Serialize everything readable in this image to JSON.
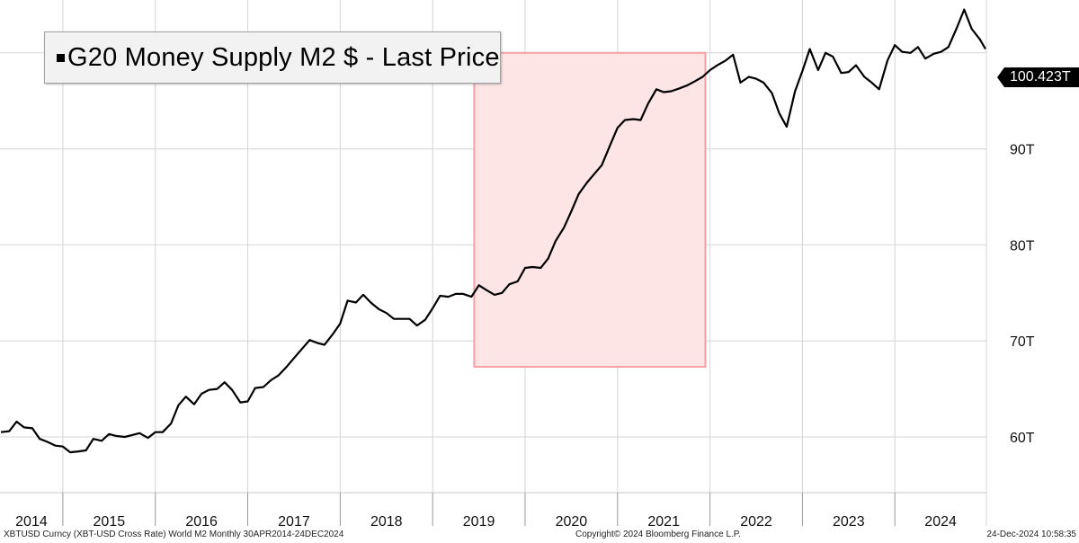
{
  "legend": {
    "label": "G20 Money Supply M2 $ - Last Price"
  },
  "last_value_label": "100.423T",
  "footer": {
    "left": "XBTUSD Curncy (XBT-USD Cross Rate) World M2  Monthly 30APR2014-24DEC2024",
    "center": "Copyright© 2024 Bloomberg Finance L.P.",
    "right": "24-Dec-2024 10:58:35"
  },
  "colors": {
    "line": "#000000",
    "highlight_fill": "#fde4e5",
    "highlight_stroke": "#f5a0a3",
    "grid": "#d4d4d4",
    "label_bg": "#000000"
  },
  "chart_data": {
    "type": "line",
    "title": "",
    "xlabel": "",
    "ylabel": "",
    "ylim": [
      54.2,
      105.5
    ],
    "xlim": [
      2014.32,
      2024.99
    ],
    "y_ticks": [
      60,
      70,
      80,
      90
    ],
    "y_tick_labels": [
      "60T",
      "70T",
      "80T",
      "90T"
    ],
    "x_tick_labels": [
      "2014",
      "2015",
      "2016",
      "2017",
      "2018",
      "2019",
      "2020",
      "2021",
      "2022",
      "2023",
      "2024"
    ],
    "grid": true,
    "legend_position": "top-left",
    "highlight_region": {
      "x": [
        2019.45,
        2021.95
      ],
      "y": [
        67.3,
        100
      ]
    },
    "series": [
      {
        "name": "G20 Money Supply M2 $ - Last Price",
        "x": [
          2014.33,
          2014.42,
          2014.5,
          2014.58,
          2014.67,
          2014.75,
          2014.83,
          2014.92,
          2015.0,
          2015.08,
          2015.17,
          2015.25,
          2015.33,
          2015.42,
          2015.5,
          2015.58,
          2015.67,
          2015.75,
          2015.83,
          2015.92,
          2016.0,
          2016.08,
          2016.17,
          2016.25,
          2016.33,
          2016.42,
          2016.5,
          2016.58,
          2016.67,
          2016.75,
          2016.83,
          2016.92,
          2017.0,
          2017.08,
          2017.17,
          2017.25,
          2017.33,
          2017.42,
          2017.5,
          2017.58,
          2017.67,
          2017.75,
          2017.83,
          2017.92,
          2018.0,
          2018.08,
          2018.17,
          2018.25,
          2018.33,
          2018.42,
          2018.5,
          2018.58,
          2018.67,
          2018.75,
          2018.83,
          2018.92,
          2019.0,
          2019.08,
          2019.17,
          2019.25,
          2019.33,
          2019.42,
          2019.5,
          2019.58,
          2019.67,
          2019.75,
          2019.83,
          2019.92,
          2020.0,
          2020.08,
          2020.17,
          2020.25,
          2020.33,
          2020.42,
          2020.5,
          2020.58,
          2020.67,
          2020.75,
          2020.83,
          2020.92,
          2021.0,
          2021.08,
          2021.17,
          2021.25,
          2021.33,
          2021.42,
          2021.5,
          2021.58,
          2021.67,
          2021.75,
          2021.83,
          2021.92,
          2022.0,
          2022.08,
          2022.17,
          2022.25,
          2022.33,
          2022.42,
          2022.5,
          2022.58,
          2022.67,
          2022.75,
          2022.83,
          2022.92,
          2023.0,
          2023.08,
          2023.17,
          2023.25,
          2023.33,
          2023.42,
          2023.5,
          2023.58,
          2023.67,
          2023.75,
          2023.83,
          2023.92,
          2024.0,
          2024.08,
          2024.17,
          2024.25,
          2024.33,
          2024.42,
          2024.5,
          2024.58,
          2024.67,
          2024.75,
          2024.83,
          2024.92,
          2024.98
        ],
        "values": [
          60.5,
          60.6,
          61.6,
          61.0,
          60.9,
          59.8,
          59.5,
          59.1,
          59.0,
          58.4,
          58.5,
          58.6,
          59.8,
          59.6,
          60.3,
          60.1,
          60.0,
          60.2,
          60.4,
          59.9,
          60.5,
          60.5,
          61.4,
          63.3,
          64.2,
          63.4,
          64.5,
          64.9,
          65.0,
          65.7,
          64.9,
          63.6,
          63.7,
          65.1,
          65.2,
          65.9,
          66.4,
          67.3,
          68.2,
          69.1,
          70.1,
          69.8,
          69.6,
          70.7,
          71.8,
          74.2,
          74.0,
          74.8,
          74.0,
          73.3,
          72.9,
          72.3,
          72.3,
          72.3,
          71.6,
          72.2,
          73.4,
          74.7,
          74.6,
          74.9,
          74.9,
          74.6,
          75.8,
          75.3,
          74.8,
          75.0,
          75.9,
          76.2,
          77.6,
          77.7,
          77.6,
          78.6,
          80.4,
          81.8,
          83.5,
          85.3,
          86.5,
          87.4,
          88.3,
          90.4,
          92.2,
          93.0,
          93.1,
          93.0,
          94.7,
          96.2,
          95.9,
          96.0,
          96.3,
          96.6,
          97.0,
          97.5,
          98.2,
          98.7,
          99.2,
          99.8,
          96.9,
          97.5,
          97.3,
          96.9,
          95.8,
          93.7,
          92.3,
          96.0,
          98.1,
          100.4,
          98.2,
          100.0,
          99.6,
          97.9,
          98.0,
          98.7,
          97.5,
          96.9,
          96.2,
          99.2,
          100.8,
          100.1,
          100.0,
          100.6,
          99.4,
          99.9,
          100.1,
          100.6,
          102.6,
          104.5,
          102.5,
          101.4,
          100.4
        ]
      }
    ]
  }
}
